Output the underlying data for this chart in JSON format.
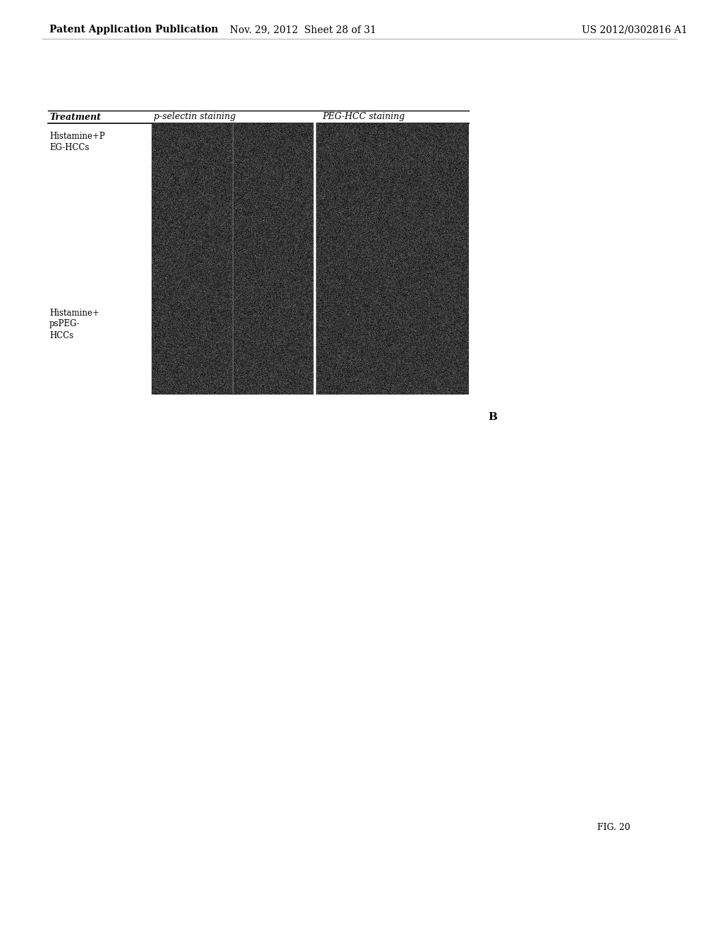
{
  "header_left": "Patent Application Publication",
  "header_mid": "Nov. 29, 2012  Sheet 28 of 31",
  "header_right": "US 2012/0302816 A1",
  "col1_header": "Treatment",
  "col2_header": "p-selectin staining",
  "col3_header": "PEG-HCC staining",
  "row1_label_line1": "Histamine+P",
  "row1_label_line2": "EG-HCCs",
  "row2_label_line1": "Histamine+",
  "row2_label_line2": "psPEG-",
  "row2_label_line3": "HCCs",
  "fig_label": "FIG. 20",
  "panel_label": "B",
  "bg_color": "#ffffff",
  "text_color": "#000000",
  "noise_mean": 0.21,
  "noise_std": 0.07,
  "header_fontsize": 10,
  "col_header_fontsize": 9,
  "row_label_fontsize": 8.5,
  "fig_fontsize": 9,
  "panel_fontsize": 11
}
